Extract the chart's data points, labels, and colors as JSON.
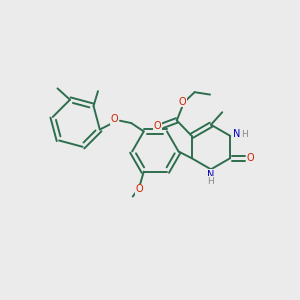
{
  "bg": "#ebebeb",
  "bc": "#2d6e4e",
  "oc": "#cc2200",
  "nc": "#0000bb",
  "hc": "#888888",
  "bw": 1.4,
  "fs": 7.0,
  "figsize": [
    3.0,
    3.0
  ],
  "dpi": 100,
  "xlim": [
    0,
    10
  ],
  "ylim": [
    0,
    10
  ]
}
